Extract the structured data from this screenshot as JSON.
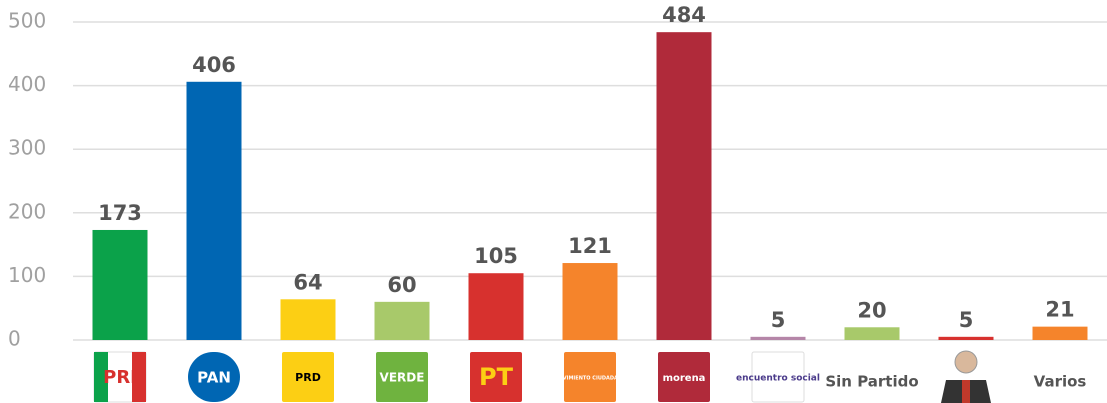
{
  "chart_data": {
    "type": "bar",
    "categories": [
      "PRI",
      "PAN",
      "PRD",
      "VERDE",
      "PT",
      "MOVIMIENTO CIUDADANO",
      "morena",
      "encuentro social",
      "Sin Partido",
      null,
      "Varios"
    ],
    "values": [
      173,
      406,
      64,
      60,
      105,
      121,
      484,
      5,
      20,
      5,
      21
    ],
    "colors": [
      "#0ba24a",
      "#0066b3",
      "#fccf14",
      "#a8c96a",
      "#d7312e",
      "#f5842b",
      "#b02a3a",
      "#b586a8",
      "#a8c96a",
      "#d7312e",
      "#f5842b"
    ],
    "ylim": [
      0,
      500
    ],
    "yticks": [
      0,
      100,
      200,
      300,
      400,
      500
    ],
    "grid": true
  }
}
